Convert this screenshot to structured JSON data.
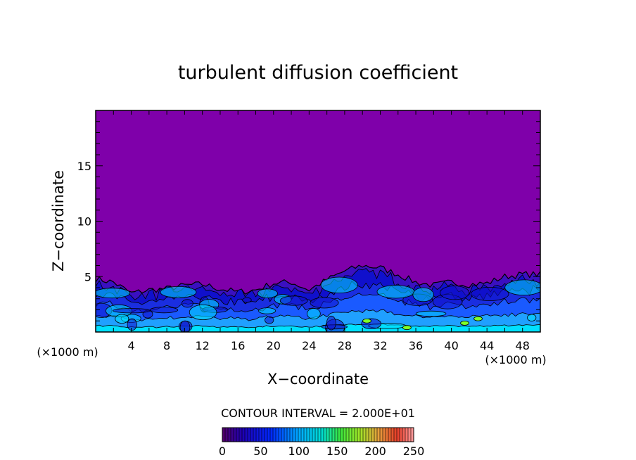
{
  "chart_data": {
    "type": "heatmap",
    "title": "turbulent diffusion coefficient",
    "xlabel": "X−coordinate",
    "ylabel": "Z−coordinate",
    "x_unit_label": "(×1000 m)",
    "y_unit_label": "(×1000 m)",
    "xlim": [
      0,
      50
    ],
    "ylim": [
      0,
      20
    ],
    "x_ticks": [
      4,
      8,
      12,
      16,
      20,
      24,
      28,
      32,
      36,
      40,
      44,
      48
    ],
    "y_ticks": [
      5,
      10,
      15
    ],
    "contour_interval_label": "CONTOUR INTERVAL = 2.000E+01",
    "colorbar": {
      "range": [
        0,
        250
      ],
      "ticks": [
        0,
        50,
        100,
        150,
        200,
        250
      ]
    },
    "background_value": 0,
    "turbulent_layer_top": [
      [
        0,
        4.8
      ],
      [
        2,
        4.5
      ],
      [
        4,
        3.5
      ],
      [
        6,
        3.8
      ],
      [
        8,
        3.9
      ],
      [
        10,
        4.2
      ],
      [
        12,
        4.3
      ],
      [
        14,
        3.9
      ],
      [
        16,
        3.6
      ],
      [
        18,
        3.8
      ],
      [
        20,
        4.4
      ],
      [
        22,
        4.5
      ],
      [
        24,
        3.8
      ],
      [
        26,
        4.7
      ],
      [
        28,
        5.5
      ],
      [
        30,
        6.0
      ],
      [
        32,
        5.8
      ],
      [
        34,
        5.2
      ],
      [
        36,
        4.5
      ],
      [
        38,
        4.2
      ],
      [
        40,
        4.5
      ],
      [
        42,
        4.3
      ],
      [
        44,
        4.4
      ],
      [
        46,
        5.0
      ],
      [
        48,
        5.2
      ],
      [
        50,
        5.2
      ]
    ],
    "colors": {
      "background": "#7f00aa",
      "low": "#1010cc",
      "mid": "#1a5aff",
      "high": "#00e0ff",
      "max": "#7fff2a"
    }
  }
}
